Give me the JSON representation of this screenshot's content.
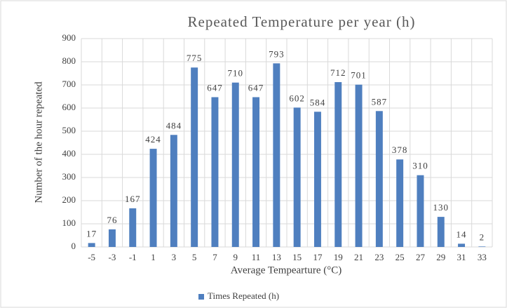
{
  "chart_data": {
    "type": "bar",
    "title": "Repeated Temperature per year (h)",
    "x_label": "Average Tempearture (°C)",
    "y_label": "Number of the hour repeated",
    "categories": [
      "-5",
      "-3",
      "-1",
      "1",
      "3",
      "5",
      "7",
      "9",
      "11",
      "13",
      "15",
      "17",
      "19",
      "21",
      "23",
      "25",
      "27",
      "29",
      "31",
      "33"
    ],
    "series": [
      {
        "name": "Times Repeated (h)",
        "color": "#4f7fbf",
        "values": [
          17,
          76,
          167,
          424,
          484,
          775,
          647,
          710,
          647,
          793,
          602,
          584,
          712,
          701,
          587,
          378,
          310,
          130,
          14,
          2
        ]
      }
    ],
    "ylim": [
      0,
      900
    ],
    "yticks": [
      0,
      100,
      200,
      300,
      400,
      500,
      600,
      700,
      800,
      900
    ],
    "grid": true,
    "legend": "bottom"
  }
}
